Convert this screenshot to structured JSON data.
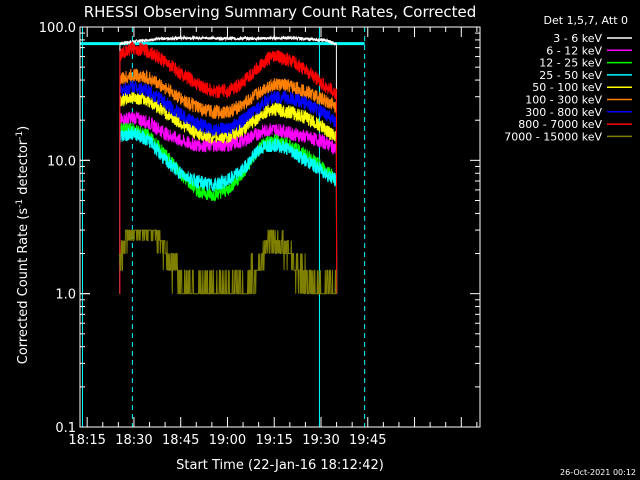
{
  "chart_data": {
    "type": "line",
    "title": "RHESSI Observing Summary Count Rates, Corrected",
    "xlabel": "Start Time (22-Jan-16 18:12:42)",
    "ylabel_main": "Corrected Count Rate (s",
    "ylabel_sup": "-1",
    "ylabel_mid": " detector",
    "ylabel_end": ")",
    "x_unit": "minutes since 18:00 UT",
    "xlim": [
      12.7,
      141
    ],
    "ylim": [
      0.1,
      100
    ],
    "ylog": true,
    "y_ticks": [
      {
        "v": 0.1,
        "label": "0.1"
      },
      {
        "v": 1,
        "label": "1.0"
      },
      {
        "v": 10,
        "label": "10.0"
      },
      {
        "v": 100,
        "label": "100.0"
      }
    ],
    "x_ticks": [
      {
        "v": 15,
        "label": "18:15"
      },
      {
        "v": 30,
        "label": "18:30"
      },
      {
        "v": 45,
        "label": "18:45"
      },
      {
        "v": 60,
        "label": "19:00"
      },
      {
        "v": 75,
        "label": "19:15"
      },
      {
        "v": 90,
        "label": "19:30"
      },
      {
        "v": 105,
        "label": "19:45"
      }
    ],
    "legend_header": "Det 1,5,7, Att 0",
    "legend_position": "top-right outside",
    "series": [
      {
        "name": "3 - 6 keV",
        "color": "#ffffff",
        "points": [
          [
            25.5,
            75
          ],
          [
            30,
            78
          ],
          [
            40,
            82
          ],
          [
            50,
            83
          ],
          [
            60,
            82
          ],
          [
            70,
            82
          ],
          [
            80,
            83
          ],
          [
            90,
            80
          ],
          [
            93,
            78
          ],
          [
            95,
            74
          ]
        ]
      },
      {
        "name": "6 - 12 keV",
        "color": "#ff00ff",
        "points": [
          [
            25.5,
            20
          ],
          [
            30,
            21
          ],
          [
            35,
            19
          ],
          [
            40,
            16
          ],
          [
            45,
            14
          ],
          [
            50,
            13
          ],
          [
            55,
            13
          ],
          [
            60,
            13
          ],
          [
            65,
            14
          ],
          [
            70,
            16
          ],
          [
            73,
            17
          ],
          [
            76,
            17
          ],
          [
            80,
            16
          ],
          [
            85,
            15
          ],
          [
            90,
            14
          ],
          [
            93,
            13
          ],
          [
            95,
            12
          ]
        ]
      },
      {
        "name": "12 - 25 keV",
        "color": "#00ff00",
        "points": [
          [
            25.5,
            17
          ],
          [
            30,
            17
          ],
          [
            35,
            15
          ],
          [
            40,
            11
          ],
          [
            45,
            8
          ],
          [
            50,
            6
          ],
          [
            55,
            5.5
          ],
          [
            60,
            6
          ],
          [
            65,
            8
          ],
          [
            70,
            12
          ],
          [
            73,
            14
          ],
          [
            76,
            14
          ],
          [
            80,
            13
          ],
          [
            85,
            11
          ],
          [
            90,
            9
          ],
          [
            93,
            8
          ],
          [
            95,
            7
          ]
        ]
      },
      {
        "name": "25 - 50 keV",
        "color": "#00ffff",
        "points": [
          [
            25.5,
            15
          ],
          [
            30,
            16
          ],
          [
            35,
            14
          ],
          [
            40,
            10
          ],
          [
            45,
            8
          ],
          [
            50,
            7
          ],
          [
            55,
            6.5
          ],
          [
            60,
            7
          ],
          [
            65,
            8.5
          ],
          [
            70,
            12
          ],
          [
            73,
            13
          ],
          [
            76,
            13
          ],
          [
            80,
            12
          ],
          [
            85,
            10
          ],
          [
            90,
            8.5
          ],
          [
            93,
            7.5
          ],
          [
            95,
            7
          ]
        ]
      },
      {
        "name": "50 - 100 keV",
        "color": "#ffff00",
        "points": [
          [
            25.5,
            28
          ],
          [
            30,
            30
          ],
          [
            35,
            28
          ],
          [
            40,
            23
          ],
          [
            45,
            19
          ],
          [
            50,
            16
          ],
          [
            55,
            15
          ],
          [
            60,
            15
          ],
          [
            65,
            17
          ],
          [
            70,
            21
          ],
          [
            73,
            24
          ],
          [
            76,
            24
          ],
          [
            80,
            23
          ],
          [
            85,
            21
          ],
          [
            90,
            18
          ],
          [
            93,
            16
          ],
          [
            95,
            15
          ]
        ]
      },
      {
        "name": "100 - 300 keV",
        "color": "#ff8000",
        "points": [
          [
            25.5,
            40
          ],
          [
            30,
            44
          ],
          [
            35,
            41
          ],
          [
            40,
            35
          ],
          [
            45,
            29
          ],
          [
            50,
            25
          ],
          [
            55,
            23
          ],
          [
            60,
            23
          ],
          [
            65,
            26
          ],
          [
            70,
            32
          ],
          [
            73,
            36
          ],
          [
            76,
            37
          ],
          [
            80,
            36
          ],
          [
            85,
            33
          ],
          [
            90,
            29
          ],
          [
            93,
            27
          ],
          [
            95,
            25
          ]
        ]
      },
      {
        "name": "300 - 800 keV",
        "color": "#0000ff",
        "points": [
          [
            25.5,
            33
          ],
          [
            30,
            36
          ],
          [
            35,
            33
          ],
          [
            40,
            27
          ],
          [
            45,
            22
          ],
          [
            50,
            19
          ],
          [
            55,
            17
          ],
          [
            60,
            17
          ],
          [
            65,
            20
          ],
          [
            70,
            25
          ],
          [
            73,
            29
          ],
          [
            76,
            30
          ],
          [
            80,
            29
          ],
          [
            85,
            27
          ],
          [
            90,
            23
          ],
          [
            93,
            21
          ],
          [
            95,
            19
          ]
        ]
      },
      {
        "name": "800 - 7000 keV",
        "color": "#ff0000",
        "points": [
          [
            25.5,
            62
          ],
          [
            30,
            70
          ],
          [
            35,
            65
          ],
          [
            40,
            55
          ],
          [
            45,
            45
          ],
          [
            50,
            38
          ],
          [
            55,
            33
          ],
          [
            60,
            33
          ],
          [
            65,
            38
          ],
          [
            70,
            50
          ],
          [
            73,
            58
          ],
          [
            76,
            60
          ],
          [
            80,
            56
          ],
          [
            85,
            48
          ],
          [
            90,
            38
          ],
          [
            93,
            34
          ],
          [
            95,
            31
          ]
        ]
      },
      {
        "name": "7000 - 15000 keV",
        "color": "#808000",
        "points": [
          [
            25.5,
            1.9
          ],
          [
            28,
            2.8
          ],
          [
            32,
            2.9
          ],
          [
            36,
            3.1
          ],
          [
            40,
            2.0
          ],
          [
            44,
            1.4
          ],
          [
            48,
            1.0
          ],
          [
            55,
            1.0
          ],
          [
            60,
            1.0
          ],
          [
            65,
            1.0
          ],
          [
            70,
            1.5
          ],
          [
            73,
            2.5
          ],
          [
            76,
            2.6
          ],
          [
            80,
            2.0
          ],
          [
            84,
            1.3
          ],
          [
            88,
            1.0
          ],
          [
            92,
            1.0
          ],
          [
            95,
            1.0
          ]
        ]
      }
    ],
    "annotation_lines": [
      {
        "kind": "cyan-solid",
        "x": 13.5
      },
      {
        "kind": "cyan-dashed",
        "x": 29.5
      },
      {
        "kind": "cyan-solid",
        "x": 89.5
      },
      {
        "kind": "cyan-dashed",
        "x": 104
      }
    ],
    "cyan_bar_y": 75
  },
  "footer": {
    "timestamp": "26-Oct-2021 00:12"
  }
}
